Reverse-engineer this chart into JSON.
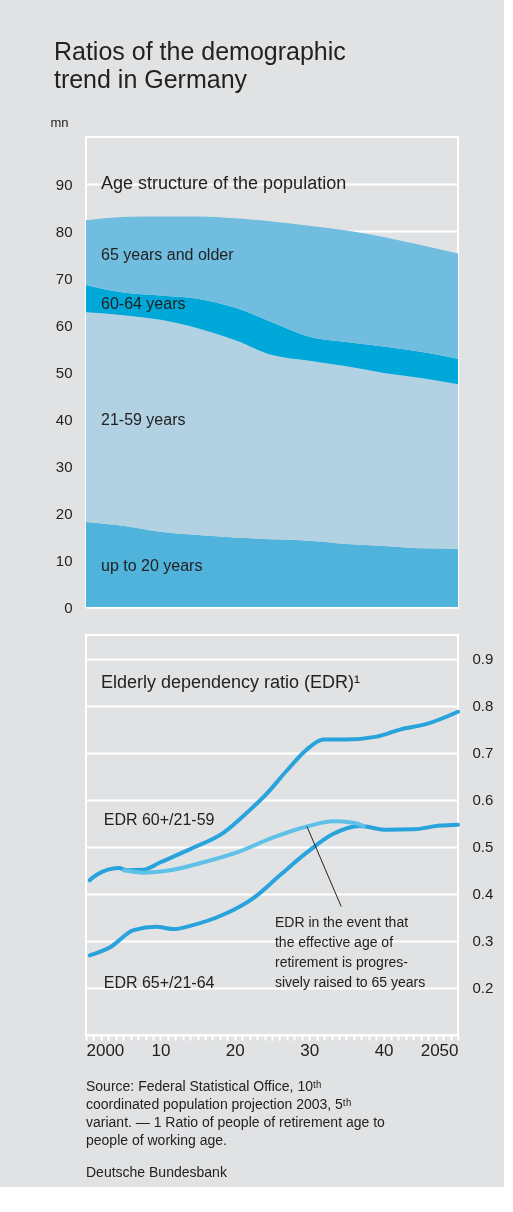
{
  "chart_data": [
    {
      "type": "area",
      "title": "Ratios of the demographic trend in Germany",
      "subtitle": "Age structure of the population",
      "ylabel": "mn",
      "stacked": true,
      "legend": false,
      "grid": "y",
      "tick_labels": "y",
      "x": [
        2000,
        2005,
        2010,
        2015,
        2020,
        2025,
        2030,
        2035,
        2040,
        2045,
        2050
      ],
      "series": [
        {
          "name": "up to 20 years",
          "color": "#4fb3dc",
          "values": [
            18.1,
            17.3,
            16.0,
            15.3,
            14.8,
            14.4,
            14.1,
            13.4,
            13.0,
            12.5,
            12.4
          ]
        },
        {
          "name": "21-59 years",
          "color": "#b2d1e2",
          "values": [
            44.6,
            44.8,
            45.1,
            44.0,
            42.0,
            39.2,
            38.3,
            37.8,
            36.8,
            36.2,
            35.0
          ]
        },
        {
          "name": "60-64 years",
          "color": "#00a8da",
          "values": [
            5.8,
            4.8,
            5.2,
            6.3,
            6.9,
            7.0,
            5.1,
            5.2,
            5.6,
            5.6,
            5.4
          ]
        },
        {
          "name": "65 years and older",
          "color": "#70bddf",
          "values": [
            13.8,
            16.1,
            16.8,
            17.5,
            19.0,
            21.4,
            23.6,
            23.7,
            23.3,
            22.7,
            22.4
          ]
        }
      ],
      "xlim": [
        2000,
        2050
      ],
      "ylim": [
        0,
        100
      ],
      "yticks": [
        0,
        10,
        20,
        30,
        40,
        50,
        60,
        70,
        80,
        90
      ]
    },
    {
      "type": "line",
      "title": "Elderly dependency ratio (EDR)¹",
      "legend": false,
      "grid": "y",
      "line_style": "solid",
      "marker": "none",
      "series": [
        {
          "name": "EDR 60+/21-59",
          "color": "#29a3dc",
          "x": [
            2000.5,
            2001.5,
            2004.4,
            2005.5,
            2007.7,
            2010,
            2014,
            2018.5,
            2021.6,
            2024.3,
            2027,
            2029.7,
            2031.9,
            2035,
            2039.1,
            2042.2,
            2045.8,
            2050
          ],
          "values": [
            0.429,
            0.441,
            0.455,
            0.45,
            0.451,
            0.467,
            0.495,
            0.53,
            0.572,
            0.613,
            0.662,
            0.707,
            0.728,
            0.728,
            0.734,
            0.749,
            0.761,
            0.787
          ]
        },
        {
          "name": "EDR 65+/21-64",
          "color": "#29a3dc",
          "x": [
            2000.5,
            2003.3,
            2006.4,
            2009.5,
            2011.8,
            2014,
            2018.5,
            2022.5,
            2026.1,
            2029.7,
            2033.2,
            2036.8,
            2040.4,
            2044,
            2047.6,
            2050
          ],
          "values": [
            0.269,
            0.287,
            0.323,
            0.33,
            0.325,
            0.332,
            0.356,
            0.391,
            0.44,
            0.488,
            0.527,
            0.544,
            0.536,
            0.537,
            0.545,
            0.547
          ]
        },
        {
          "color": "#5fc0e8",
          "x": [
            2005.1,
            2007.7,
            2011.3,
            2015.8,
            2020.3,
            2025.2,
            2029.7,
            2033.2,
            2035.9,
            2037.3
          ],
          "values": [
            0.45,
            0.445,
            0.45,
            0.467,
            0.488,
            0.52,
            0.543,
            0.554,
            0.551,
            0.544
          ]
        }
      ],
      "xlim": [
        2000,
        2050
      ],
      "ylim": [
        0.1,
        0.95
      ],
      "xticks": [
        2000,
        {
          "value": 2001,
          "label": null
        },
        {
          "value": 2002,
          "label": null
        },
        {
          "value": 2003,
          "label": null
        },
        {
          "value": 2004,
          "label": null
        },
        {
          "value": 2005,
          "label": null
        },
        {
          "value": 2006,
          "label": null
        },
        {
          "value": 2007,
          "label": null
        },
        {
          "value": 2008,
          "label": null
        },
        {
          "value": 2009,
          "label": null
        },
        {
          "value": 2010,
          "label": "10"
        },
        {
          "value": 2011,
          "label": null
        },
        {
          "value": 2012,
          "label": null
        },
        {
          "value": 2013,
          "label": null
        },
        {
          "value": 2014,
          "label": null
        },
        {
          "value": 2015,
          "label": null
        },
        {
          "value": 2016,
          "label": null
        },
        {
          "value": 2017,
          "label": null
        },
        {
          "value": 2018,
          "label": null
        },
        {
          "value": 2019,
          "label": null
        },
        {
          "value": 2020,
          "label": "20"
        },
        {
          "value": 2021,
          "label": null
        },
        {
          "value": 2022,
          "label": null
        },
        {
          "value": 2023,
          "label": null
        },
        {
          "value": 2024,
          "label": null
        },
        {
          "value": 2025,
          "label": null
        },
        {
          "value": 2026,
          "label": null
        },
        {
          "value": 2027,
          "label": null
        },
        {
          "value": 2028,
          "label": null
        },
        {
          "value": 2029,
          "label": null
        },
        {
          "value": 2030,
          "label": "30"
        },
        {
          "value": 2031,
          "label": null
        },
        {
          "value": 2032,
          "label": null
        },
        {
          "value": 2033,
          "label": null
        },
        {
          "value": 2034,
          "label": null
        },
        {
          "value": 2035,
          "label": null
        },
        {
          "value": 2036,
          "label": null
        },
        {
          "value": 2037,
          "label": null
        },
        {
          "value": 2038,
          "label": null
        },
        {
          "value": 2039,
          "label": null
        },
        {
          "value": 2040,
          "label": "40"
        },
        {
          "value": 2041,
          "label": null
        },
        {
          "value": 2042,
          "label": null
        },
        {
          "value": 2043,
          "label": null
        },
        {
          "value": 2044,
          "label": null
        },
        {
          "value": 2045,
          "label": null
        },
        {
          "value": 2046,
          "label": null
        },
        {
          "value": 2047,
          "label": null
        },
        {
          "value": 2048,
          "label": null
        },
        {
          "value": 2049,
          "label": null
        },
        2050
      ],
      "yticks": [
        0.2,
        0.3,
        0.4,
        0.5,
        0.6,
        0.7,
        0.8,
        0.9
      ],
      "annotations": [
        {
          "text": "EDR in the event that\nthe effective age of\nretirement is progres-\nsively raised to 65 years",
          "x": 2029.7,
          "y": 0.543
        },
        "Source: Federal Statistical Office, 10ᵗʰ coordinated population projection 2003, 5ᵗʰ variant. — 1 Ratio of people of retirement age to people of working age.",
        "Deutsche Bundesbank"
      ]
    }
  ]
}
